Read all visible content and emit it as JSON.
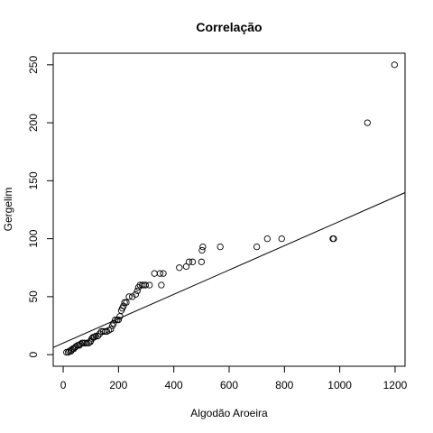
{
  "chart_data": {
    "type": "scatter",
    "title": "Correlação",
    "xlabel": "Algodão Aroeira",
    "ylabel": "Gergelim",
    "xlim": [
      -36,
      1236
    ],
    "ylim": [
      -10,
      260
    ],
    "xticks": [
      0,
      200,
      400,
      600,
      800,
      1000,
      1200
    ],
    "yticks": [
      0,
      50,
      100,
      150,
      200,
      250
    ],
    "grid": false,
    "regression_line": {
      "intercept": 10,
      "slope": 0.105
    },
    "colors": {
      "points": "#000000",
      "line": "#000000",
      "axes": "#000000"
    },
    "series": [
      {
        "x": [
          12,
          18,
          22,
          28,
          30,
          34,
          38,
          42,
          46,
          52,
          58,
          62,
          68,
          72,
          78,
          85,
          92,
          98,
          100,
          104,
          108,
          112,
          118,
          125,
          132,
          138,
          145,
          152,
          158,
          165,
          172,
          178,
          182,
          188,
          195,
          200,
          205,
          210,
          214,
          218,
          222,
          228,
          238,
          250,
          262,
          268,
          272,
          278,
          286,
          292,
          298,
          312,
          330,
          350,
          355,
          362,
          420,
          445,
          455,
          468,
          500,
          502,
          505,
          568,
          700,
          738,
          790,
          975,
          978,
          1100,
          1198
        ],
        "y": [
          2,
          2,
          3,
          3,
          4,
          5,
          5,
          6,
          7,
          8,
          8,
          9,
          10,
          10,
          10,
          10,
          10,
          11,
          12,
          14,
          15,
          15,
          16,
          16,
          18,
          20,
          20,
          20,
          20,
          21,
          22,
          25,
          27,
          30,
          30,
          30,
          33,
          38,
          40,
          42,
          45,
          45,
          50,
          50,
          52,
          55,
          58,
          60,
          60,
          60,
          60,
          60,
          70,
          70,
          60,
          70,
          75,
          76,
          80,
          80,
          80,
          90,
          93,
          93,
          93,
          100,
          100,
          100,
          100,
          200,
          250
        ]
      }
    ]
  }
}
